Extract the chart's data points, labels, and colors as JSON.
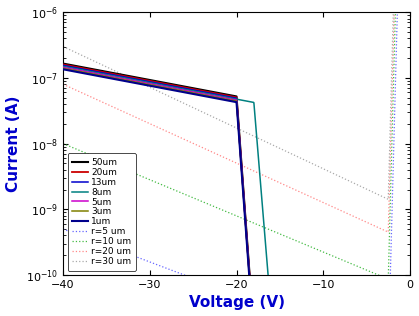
{
  "title": "",
  "xlabel": "Voltage (V)",
  "ylabel": "Current (A)",
  "xlim": [
    -40,
    0
  ],
  "ylim": [
    1e-10,
    1e-06
  ],
  "solid_lines": [
    {
      "label": "50um",
      "color": "#000000",
      "linewidth": 1.5
    },
    {
      "label": "20um",
      "color": "#cc0000",
      "linewidth": 1.3
    },
    {
      "label": "13um",
      "color": "#0000cc",
      "linewidth": 1.1
    },
    {
      "label": "8um",
      "color": "#008080",
      "linewidth": 1.1
    },
    {
      "label": "5um",
      "color": "#cc00cc",
      "linewidth": 1.1
    },
    {
      "label": "3um",
      "color": "#808000",
      "linewidth": 1.1
    },
    {
      "label": "1um",
      "color": "#00008b",
      "linewidth": 1.5
    }
  ],
  "dashed_lines": [
    {
      "label": "r=5 um",
      "color": "#6666ff",
      "linewidth": 0.9
    },
    {
      "label": "r=10 um",
      "color": "#44bb44",
      "linewidth": 0.9
    },
    {
      "label": "r=20 um",
      "color": "#ff8888",
      "linewidth": 0.9
    },
    {
      "label": "r=30 um",
      "color": "#aaaaaa",
      "linewidth": 0.9
    }
  ],
  "xlabel_fontsize": 11,
  "ylabel_fontsize": 11,
  "legend_fontsize": 6.5,
  "tick_fontsize": 8,
  "xlabel_color": "#0000cc",
  "ylabel_color": "#0000cc",
  "axis_color": "#000000"
}
